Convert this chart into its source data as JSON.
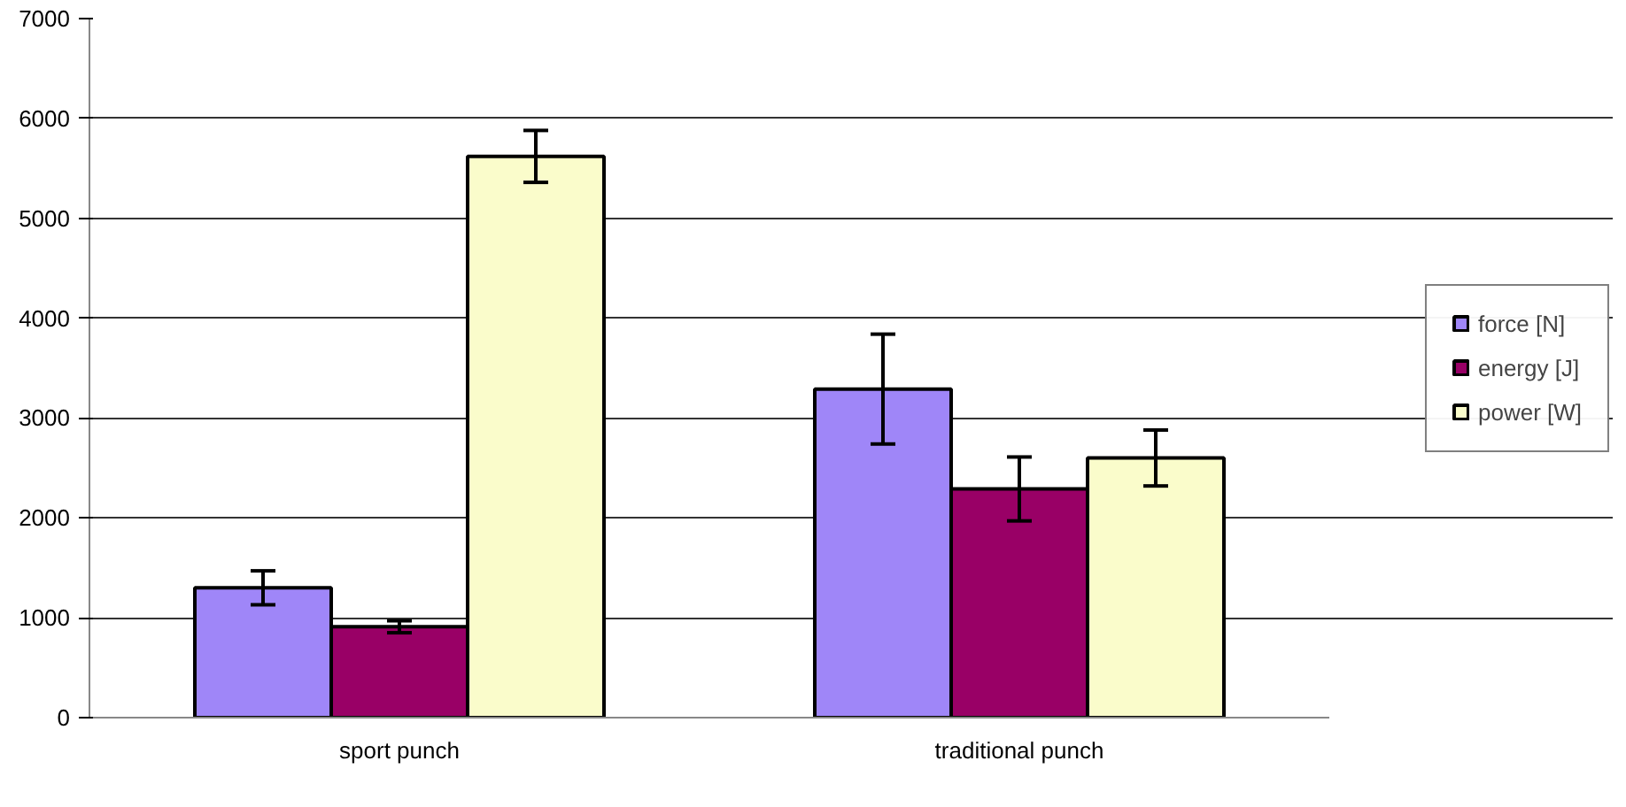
{
  "chart_data": {
    "type": "bar",
    "categories": [
      "sport punch",
      "traditional punch"
    ],
    "series": [
      {
        "name": "force [N]",
        "color": "#9f86f8",
        "values": [
          1300,
          3290
        ],
        "errors": [
          170,
          550
        ]
      },
      {
        "name": "energy [J]",
        "color": "#990066",
        "values": [
          910,
          2290
        ],
        "errors": [
          60,
          320
        ]
      },
      {
        "name": "power [W]",
        "color": "#fafccb",
        "values": [
          5620,
          2600
        ],
        "errors": [
          260,
          280
        ]
      }
    ],
    "ylim": [
      0,
      7000
    ],
    "yticks": [
      0,
      1000,
      2000,
      3000,
      4000,
      5000,
      6000,
      7000
    ],
    "grid": "y",
    "legend": "right"
  }
}
